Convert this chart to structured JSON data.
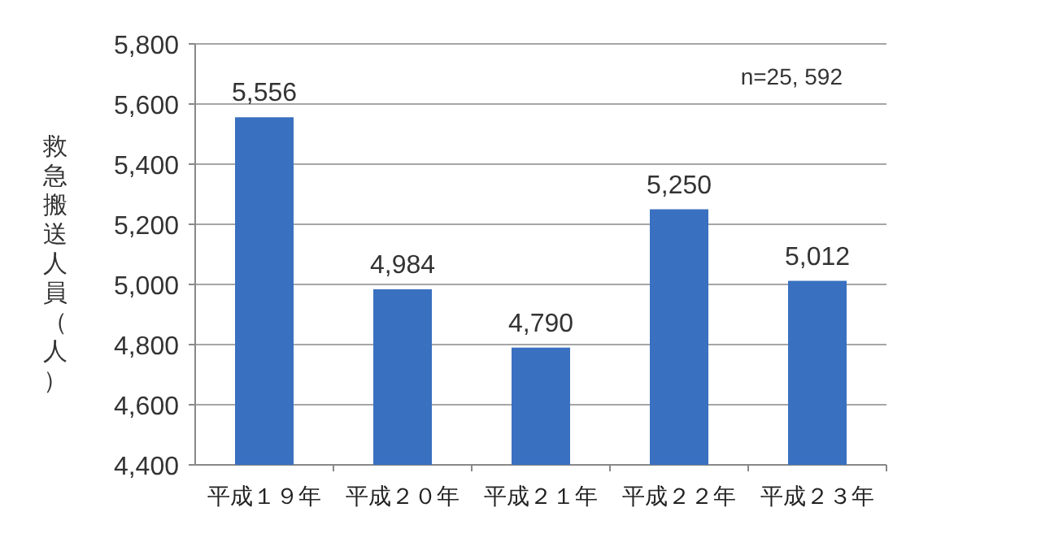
{
  "chart_data": {
    "type": "bar",
    "ylabel": "救急搬送人員（人）",
    "categories": [
      "平成１９年",
      "平成２０年",
      "平成２１年",
      "平成２２年",
      "平成２３年"
    ],
    "values": [
      5556,
      4984,
      4790,
      5250,
      5012
    ],
    "value_labels": [
      "5,556",
      "4,984",
      "4,790",
      "5,250",
      "5,012"
    ],
    "color": "#3a70c0",
    "ylim": [
      4400,
      5800
    ],
    "yticks": [
      {
        "value": 4400,
        "label": "4,400"
      },
      {
        "value": 4600,
        "label": "4,600"
      },
      {
        "value": 4800,
        "label": "4,800"
      },
      {
        "value": 5000,
        "label": "5,000"
      },
      {
        "value": 5200,
        "label": "5,200"
      },
      {
        "value": 5400,
        "label": "5,400"
      },
      {
        "value": 5600,
        "label": "5,600"
      },
      {
        "value": 5800,
        "label": "5,800"
      }
    ],
    "grid": "y",
    "annotations": [
      "n=25, 592"
    ]
  }
}
